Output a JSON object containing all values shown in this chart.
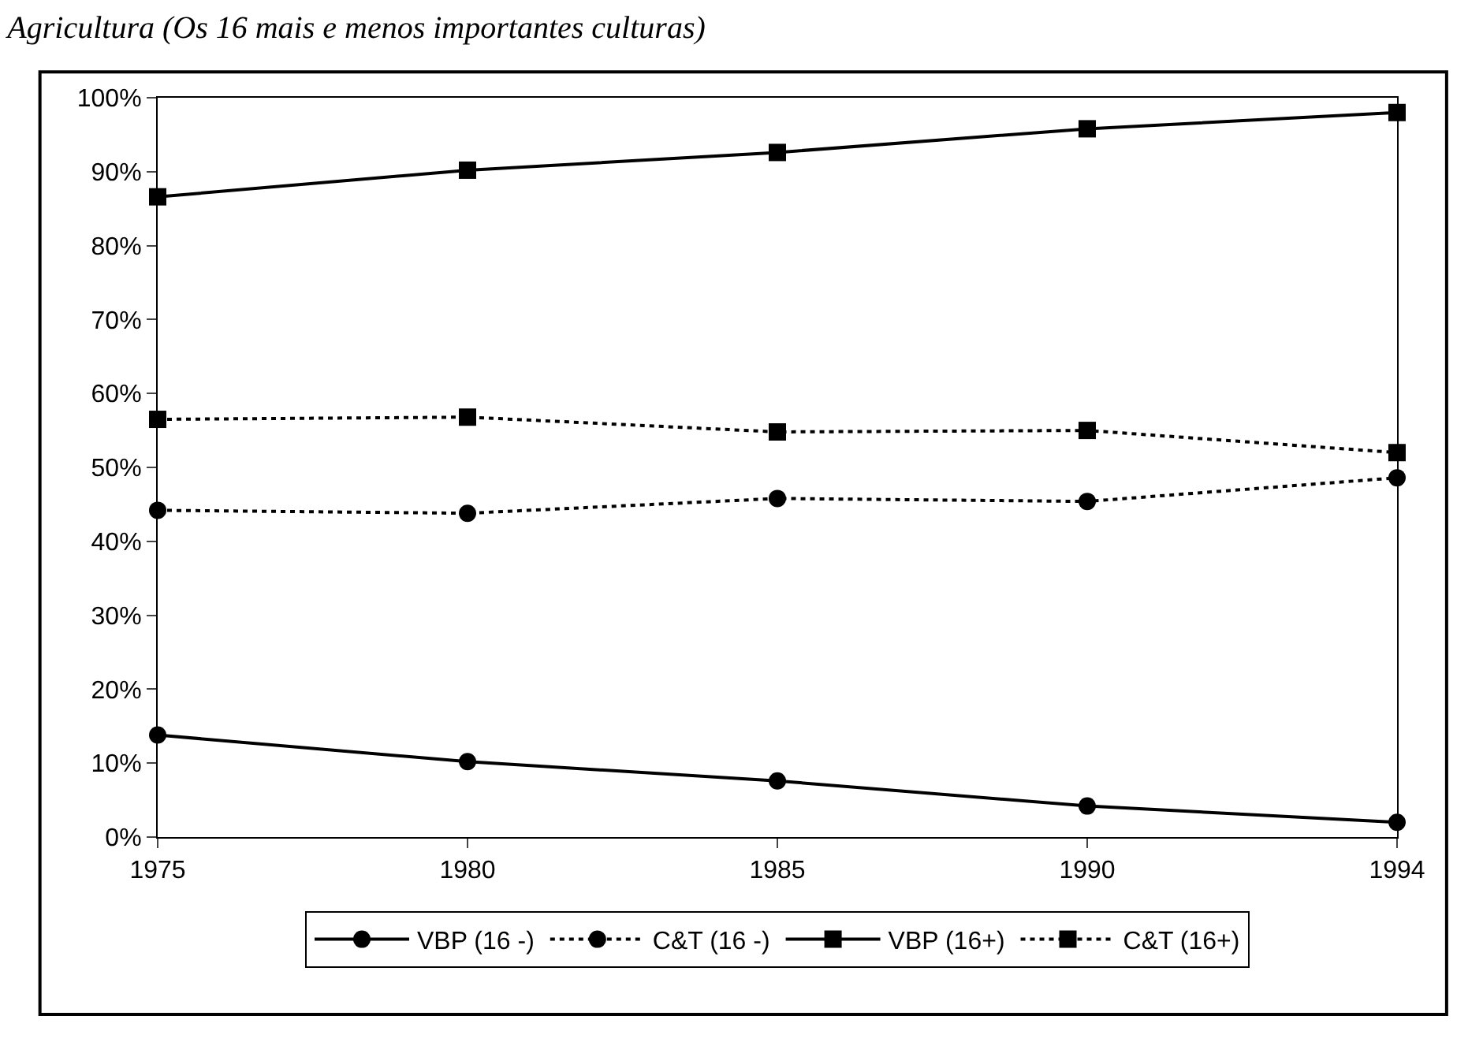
{
  "chart_data": {
    "type": "line",
    "title": "Agricultura (Os 16 mais e menos importantes culturas)",
    "categories": [
      "1975",
      "1980",
      "1985",
      "1990",
      "1994"
    ],
    "series": [
      {
        "name": "VBP (16 -)",
        "color": "#000000",
        "marker": "circle",
        "line_style": "solid",
        "values": [
          13.8,
          10.2,
          7.6,
          4.2,
          2.0
        ]
      },
      {
        "name": "C&T (16 -)",
        "color": "#000000",
        "marker": "circle",
        "line_style": "dotted",
        "values": [
          44.2,
          43.8,
          45.8,
          45.4,
          48.6
        ]
      },
      {
        "name": "VBP (16+)",
        "color": "#000000",
        "marker": "square",
        "line_style": "solid",
        "values": [
          86.6,
          90.2,
          92.6,
          95.8,
          98.0
        ]
      },
      {
        "name": "C&T (16+)",
        "color": "#000000",
        "marker": "square",
        "line_style": "dotted",
        "values": [
          56.5,
          56.8,
          54.8,
          55.0,
          52.0
        ]
      }
    ],
    "ylim": [
      0,
      100
    ],
    "yticks": [
      {
        "value": 0,
        "label": "0%"
      },
      {
        "value": 10,
        "label": "10%"
      },
      {
        "value": 20,
        "label": "20%"
      },
      {
        "value": 30,
        "label": "30%"
      },
      {
        "value": 40,
        "label": "40%"
      },
      {
        "value": 50,
        "label": "50%"
      },
      {
        "value": 60,
        "label": "60%"
      },
      {
        "value": 70,
        "label": "70%"
      },
      {
        "value": 80,
        "label": "80%"
      },
      {
        "value": 90,
        "label": "90%"
      },
      {
        "value": 100,
        "label": "100%"
      }
    ],
    "legend": "bottom"
  }
}
